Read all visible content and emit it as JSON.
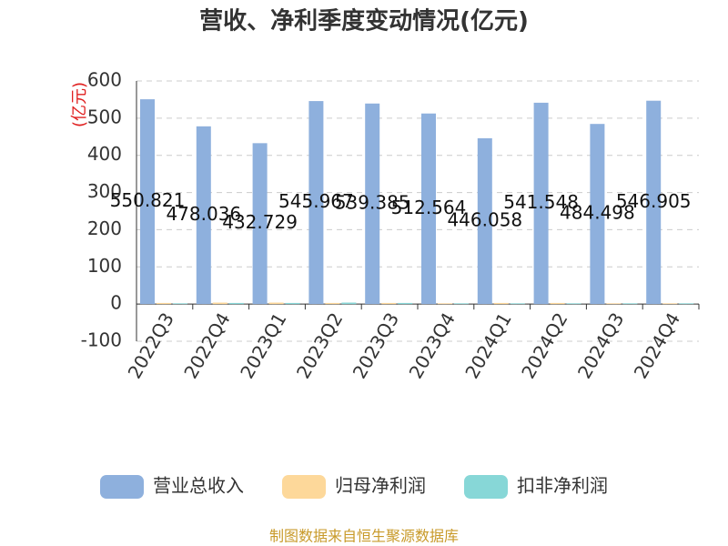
{
  "chart_data": {
    "type": "bar",
    "title": "营收、净利季度变动情况(亿元)",
    "y_label": "(亿元)",
    "source": "制图数据来自恒生聚源数据库",
    "categories": [
      "2022Q3",
      "2022Q4",
      "2023Q1",
      "2023Q2",
      "2023Q3",
      "2023Q4",
      "2024Q1",
      "2024Q2",
      "2024Q3",
      "2024Q4"
    ],
    "series": [
      {
        "name": "营业总收入",
        "color": "#8eb0dd",
        "values": [
          550.821,
          478.036,
          432.729,
          545.967,
          539.385,
          512.564,
          446.058,
          541.548,
          484.498,
          546.905
        ]
      },
      {
        "name": "归母净利润",
        "color": "#fdd89a",
        "values": [
          3,
          4,
          4,
          3,
          3,
          2,
          3,
          3,
          2,
          2
        ]
      },
      {
        "name": "扣非净利润",
        "color": "#87d7d7",
        "values": [
          2,
          3,
          3,
          4,
          3,
          2,
          2,
          2,
          2,
          2
        ]
      }
    ],
    "ylim": [
      -100,
      600
    ],
    "yticks": [
      -100,
      0,
      100,
      200,
      300,
      400,
      500,
      600
    ],
    "grid": true
  }
}
